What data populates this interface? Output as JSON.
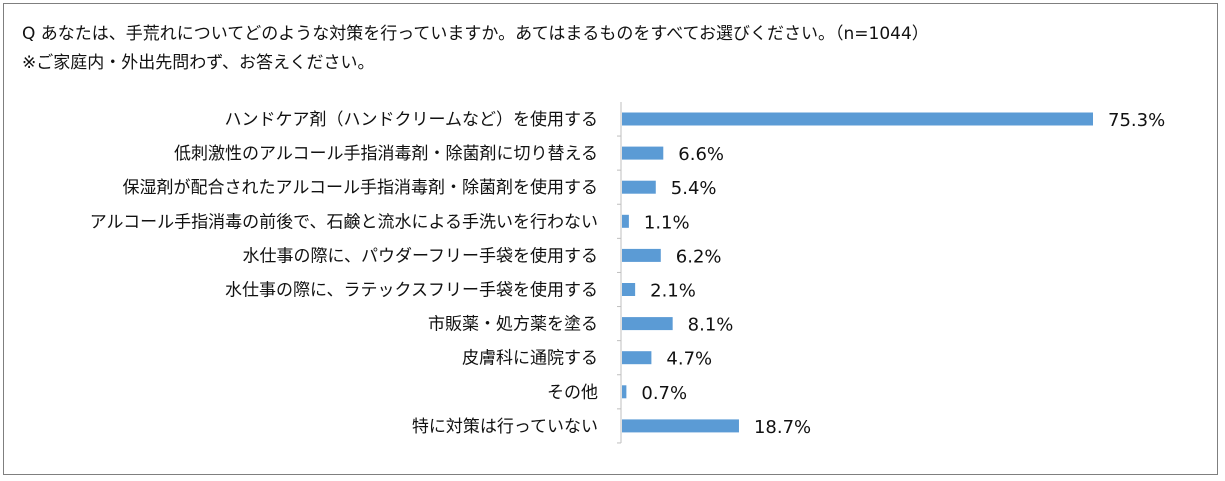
{
  "question": {
    "line1": "Q あなたは、手荒れについてどのような対策を行っていますか。あてはまるものをすべてお選びください。（n=1044）",
    "line2": "※ご家庭内・外出先問わず、お答えください。"
  },
  "colors": {
    "bar": "#5B9BD5",
    "axis": "#BFBFBF",
    "text": "#111111"
  },
  "chart_data": {
    "type": "bar",
    "orientation": "horizontal",
    "title": "",
    "xlabel": "",
    "ylabel": "",
    "xlim": [
      0,
      100
    ],
    "unit": "%",
    "grid": false,
    "categories": [
      "ハンドケア剤（ハンドクリームなど）を使用する",
      "低刺激性のアルコール手指消毒剤・除菌剤に切り替える",
      "保湿剤が配合されたアルコール手指消毒剤・除菌剤を使用する",
      "アルコール手指消毒の前後で、石鹸と流水による手洗いを行わない",
      "水仕事の際に、パウダーフリー手袋を使用する",
      "水仕事の際に、ラテックスフリー手袋を使用する",
      "市販薬・処方薬を塗る",
      "皮膚科に通院する",
      "その他",
      "特に対策は行っていない"
    ],
    "values": [
      75.3,
      6.6,
      5.4,
      1.1,
      6.2,
      2.1,
      8.1,
      4.7,
      0.7,
      18.7
    ],
    "value_labels": [
      "75.3%",
      "6.6%",
      "5.4%",
      "1.1%",
      "6.2%",
      "2.1%",
      "8.1%",
      "4.7%",
      "0.7%",
      "18.7%"
    ]
  }
}
